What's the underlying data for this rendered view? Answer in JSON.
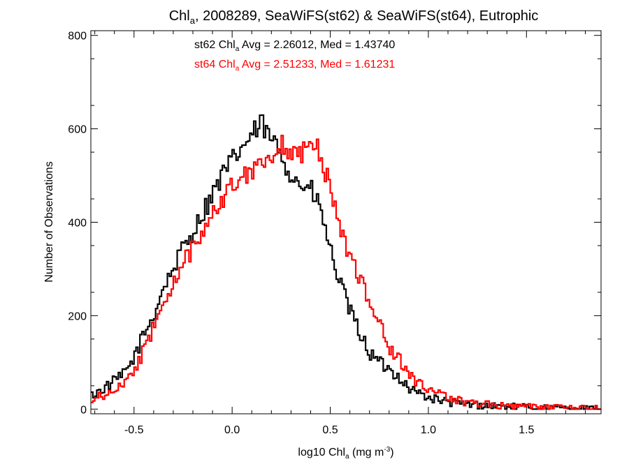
{
  "chart_data": {
    "type": "histogram",
    "title": {
      "prefix": "Chl",
      "sub": "a",
      "suffix": ", 2008289, SeaWiFS(st62) & SeaWiFS(st64), Eutrophic"
    },
    "xlabel": {
      "prefix": "log10 Chl",
      "sub": "a",
      "mid": " (mg m",
      "sup": "-3",
      "end": ")"
    },
    "ylabel": "Number of Observations",
    "xlim": [
      -0.72,
      1.88
    ],
    "ylim": [
      -10,
      810
    ],
    "xticks": [
      {
        "v": -0.5,
        "label": "-0.5"
      },
      {
        "v": 0.0,
        "label": "0.0"
      },
      {
        "v": 0.5,
        "label": "0.5"
      },
      {
        "v": 1.0,
        "label": "1.0"
      },
      {
        "v": 1.5,
        "label": "1.5"
      }
    ],
    "yticks": [
      {
        "v": 0,
        "label": "0"
      },
      {
        "v": 200,
        "label": "200"
      },
      {
        "v": 400,
        "label": "400"
      },
      {
        "v": 600,
        "label": "600"
      },
      {
        "v": 800,
        "label": "800"
      }
    ],
    "annotations": [
      {
        "prefix": "st62 Chl",
        "sub": "a",
        "suffix": " Avg = 2.26012, Med = 1.43740",
        "color": "#000000"
      },
      {
        "prefix": "st64 Chl",
        "sub": "a",
        "suffix": " Avg = 2.51233, Med = 1.61231",
        "color": "#ff0000"
      }
    ],
    "bin_width": 0.01,
    "series": [
      {
        "name": "st62",
        "color": "#000000",
        "knots": [
          [
            -0.72,
            28
          ],
          [
            -0.65,
            45
          ],
          [
            -0.6,
            60
          ],
          [
            -0.55,
            75
          ],
          [
            -0.5,
            110
          ],
          [
            -0.45,
            160
          ],
          [
            -0.4,
            200
          ],
          [
            -0.35,
            260
          ],
          [
            -0.3,
            300
          ],
          [
            -0.25,
            345
          ],
          [
            -0.2,
            380
          ],
          [
            -0.15,
            420
          ],
          [
            -0.1,
            460
          ],
          [
            -0.05,
            500
          ],
          [
            0.0,
            530
          ],
          [
            0.05,
            560
          ],
          [
            0.1,
            585
          ],
          [
            0.15,
            610
          ],
          [
            0.2,
            575
          ],
          [
            0.25,
            550
          ],
          [
            0.3,
            500
          ],
          [
            0.35,
            480
          ],
          [
            0.4,
            470
          ],
          [
            0.45,
            430
          ],
          [
            0.5,
            340
          ],
          [
            0.55,
            270
          ],
          [
            0.6,
            210
          ],
          [
            0.65,
            165
          ],
          [
            0.7,
            120
          ],
          [
            0.75,
            100
          ],
          [
            0.8,
            85
          ],
          [
            0.85,
            70
          ],
          [
            0.9,
            45
          ],
          [
            1.0,
            25
          ],
          [
            1.1,
            15
          ],
          [
            1.2,
            10
          ],
          [
            1.3,
            8
          ],
          [
            1.4,
            5
          ],
          [
            1.5,
            4
          ],
          [
            1.6,
            3
          ],
          [
            1.7,
            2
          ],
          [
            1.8,
            1
          ],
          [
            1.88,
            0
          ]
        ]
      },
      {
        "name": "st64",
        "color": "#ff0000",
        "knots": [
          [
            -0.72,
            20
          ],
          [
            -0.65,
            30
          ],
          [
            -0.6,
            42
          ],
          [
            -0.55,
            55
          ],
          [
            -0.5,
            80
          ],
          [
            -0.45,
            125
          ],
          [
            -0.4,
            175
          ],
          [
            -0.35,
            225
          ],
          [
            -0.3,
            265
          ],
          [
            -0.25,
            310
          ],
          [
            -0.2,
            345
          ],
          [
            -0.15,
            385
          ],
          [
            -0.1,
            420
          ],
          [
            -0.05,
            450
          ],
          [
            0.0,
            480
          ],
          [
            0.05,
            500
          ],
          [
            0.1,
            515
          ],
          [
            0.15,
            530
          ],
          [
            0.2,
            545
          ],
          [
            0.25,
            565
          ],
          [
            0.3,
            555
          ],
          [
            0.35,
            540
          ],
          [
            0.4,
            575
          ],
          [
            0.45,
            545
          ],
          [
            0.5,
            470
          ],
          [
            0.55,
            390
          ],
          [
            0.6,
            330
          ],
          [
            0.65,
            280
          ],
          [
            0.7,
            235
          ],
          [
            0.75,
            185
          ],
          [
            0.8,
            130
          ],
          [
            0.85,
            110
          ],
          [
            0.9,
            75
          ],
          [
            0.95,
            55
          ],
          [
            1.0,
            40
          ],
          [
            1.1,
            25
          ],
          [
            1.2,
            15
          ],
          [
            1.3,
            10
          ],
          [
            1.4,
            7
          ],
          [
            1.5,
            5
          ],
          [
            1.6,
            4
          ],
          [
            1.7,
            3
          ],
          [
            1.8,
            2
          ],
          [
            1.88,
            1
          ]
        ]
      }
    ]
  }
}
